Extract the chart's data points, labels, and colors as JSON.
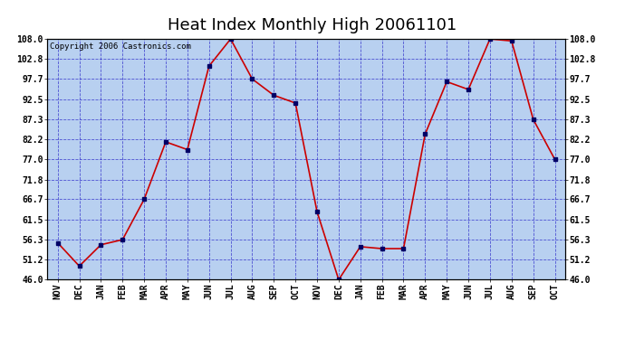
{
  "title": "Heat Index Monthly High 20061101",
  "copyright": "Copyright 2006 Castronics.com",
  "months": [
    "NOV",
    "DEC",
    "JAN",
    "FEB",
    "MAR",
    "APR",
    "MAY",
    "JUN",
    "JUL",
    "AUG",
    "SEP",
    "OCT",
    "NOV",
    "DEC",
    "JAN",
    "FEB",
    "MAR",
    "APR",
    "MAY",
    "JUN",
    "JUL",
    "AUG",
    "SEP",
    "OCT"
  ],
  "values": [
    55.5,
    49.5,
    55.0,
    56.3,
    66.7,
    81.5,
    79.5,
    101.0,
    108.0,
    97.7,
    93.5,
    91.5,
    63.5,
    46.0,
    54.5,
    54.0,
    54.0,
    83.5,
    97.0,
    95.0,
    108.0,
    107.5,
    87.3,
    77.0
  ],
  "line_color": "#cc0000",
  "marker_color": "#000066",
  "bg_color": "#b8d0f0",
  "grid_color": "#3333cc",
  "border_color": "#000000",
  "fig_bg": "#ffffff",
  "ylim": [
    46.0,
    108.0
  ],
  "yticks": [
    46.0,
    51.2,
    56.3,
    61.5,
    66.7,
    71.8,
    77.0,
    82.2,
    87.3,
    92.5,
    97.7,
    102.8,
    108.0
  ],
  "title_fontsize": 13,
  "copyright_fontsize": 6.5,
  "tick_fontsize": 7,
  "marker_size": 3
}
